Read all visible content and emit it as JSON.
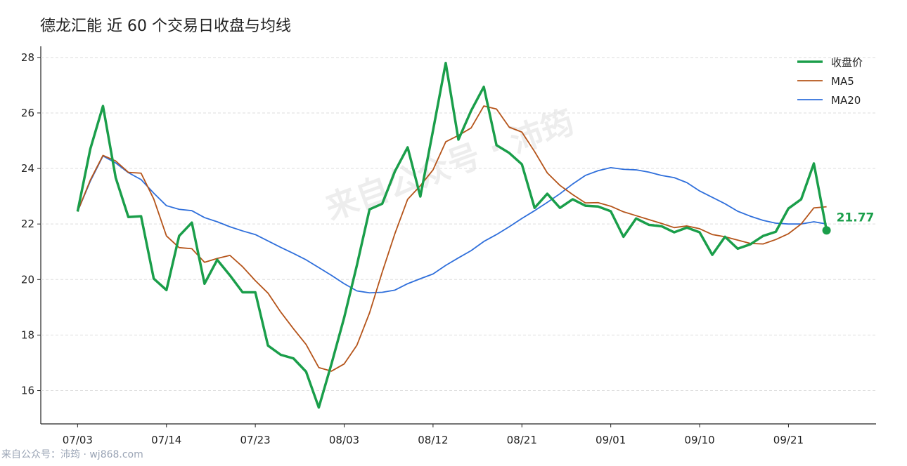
{
  "chart_data": {
    "type": "line",
    "title": "德龙汇能 近 60 个交易日收盘与均线",
    "watermark": "来自公众号 · 沛筠",
    "source": "来自公众号：沛筠 · wj868.com",
    "categories": [
      "07/03",
      null,
      null,
      null,
      null,
      null,
      null,
      "07/14",
      null,
      null,
      null,
      null,
      null,
      null,
      "07/23",
      null,
      null,
      null,
      null,
      null,
      null,
      "08/03",
      null,
      null,
      null,
      null,
      null,
      null,
      "08/12",
      null,
      null,
      null,
      null,
      null,
      null,
      "08/21",
      null,
      null,
      null,
      null,
      null,
      null,
      "09/01",
      null,
      null,
      null,
      null,
      null,
      null,
      "09/10",
      null,
      null,
      null,
      null,
      null,
      null,
      "09/21",
      null,
      null,
      null
    ],
    "series": [
      {
        "name": "收盘价",
        "color": "#1a9e4a",
        "width": 3.5,
        "values": [
          22.45,
          24.7,
          26.25,
          23.67,
          22.25,
          22.28,
          20.03,
          19.62,
          21.57,
          22.05,
          19.85,
          20.71,
          20.15,
          19.54,
          19.54,
          17.62,
          17.29,
          17.16,
          16.68,
          15.39,
          16.96,
          18.63,
          20.51,
          22.53,
          22.73,
          23.9,
          24.76,
          22.99,
          25.37,
          27.8,
          25.04,
          26.08,
          26.94,
          24.84,
          24.56,
          24.15,
          22.58,
          23.09,
          22.58,
          22.89,
          22.66,
          22.63,
          22.46,
          21.54,
          22.2,
          21.97,
          21.92,
          21.7,
          21.87,
          21.7,
          20.89,
          21.54,
          21.11,
          21.27,
          21.57,
          21.72,
          22.56,
          22.89,
          24.18,
          21.77
        ]
      },
      {
        "name": "MA5",
        "color": "#b5541a",
        "width": 1.8,
        "values": [
          22.45,
          23.58,
          24.47,
          24.27,
          23.86,
          23.83,
          22.9,
          21.57,
          21.15,
          21.11,
          20.62,
          20.76,
          20.87,
          20.46,
          19.96,
          19.51,
          18.83,
          18.23,
          17.66,
          16.83,
          16.7,
          16.96,
          17.63,
          18.8,
          20.27,
          21.66,
          22.89,
          23.38,
          23.95,
          24.96,
          25.19,
          25.46,
          26.25,
          26.14,
          25.49,
          25.31,
          24.61,
          23.84,
          23.39,
          23.06,
          22.76,
          22.77,
          22.64,
          22.44,
          22.3,
          22.16,
          22.02,
          21.87,
          21.93,
          21.83,
          21.62,
          21.54,
          21.42,
          21.3,
          21.28,
          21.44,
          21.65,
          22.0,
          22.58,
          22.62
        ]
      },
      {
        "name": "MA20",
        "color": "#2f6fdb",
        "width": 1.8,
        "values": [
          22.45,
          23.54,
          24.45,
          24.2,
          23.85,
          23.6,
          23.11,
          22.66,
          22.53,
          22.48,
          22.23,
          22.08,
          21.9,
          21.75,
          21.62,
          21.39,
          21.16,
          20.94,
          20.71,
          20.43,
          20.15,
          19.85,
          19.59,
          19.52,
          19.54,
          19.62,
          19.85,
          20.03,
          20.2,
          20.51,
          20.78,
          21.04,
          21.37,
          21.62,
          21.9,
          22.2,
          22.48,
          22.78,
          23.09,
          23.44,
          23.75,
          23.92,
          24.03,
          23.97,
          23.95,
          23.87,
          23.75,
          23.67,
          23.49,
          23.19,
          22.96,
          22.73,
          22.46,
          22.28,
          22.13,
          22.03,
          22.0,
          22.0,
          22.08,
          22.0
        ]
      }
    ],
    "ylim": [
      14.8,
      28.4
    ],
    "yticks": [
      16,
      18,
      20,
      22,
      24,
      26,
      28
    ],
    "grid": true,
    "legend": "upper right"
  }
}
